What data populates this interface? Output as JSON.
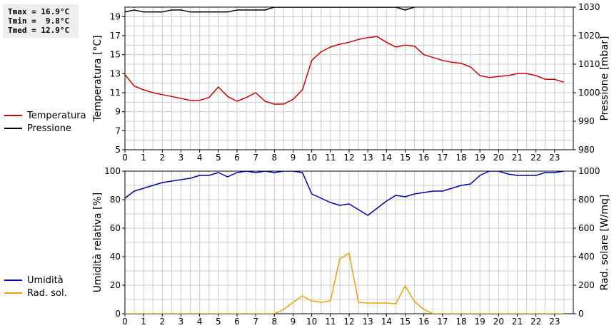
{
  "stats": {
    "tmax": "Tmax = 16.9°C",
    "tmin": "Tmin =  9.8°C",
    "tmed": "Tmed = 12.9°C"
  },
  "colors": {
    "temperature": "#cc0000",
    "pressure": "#000000",
    "humidity": "#0000aa",
    "solar": "#f0a000",
    "grid": "#cccccc"
  },
  "chart_data": [
    {
      "type": "line",
      "xlabel": "",
      "ylabel": "Temperatura [°C]",
      "y2label": "Pressione [mbar]",
      "xlim": [
        0,
        24
      ],
      "ylim": [
        5,
        20
      ],
      "y2lim": [
        980,
        1030
      ],
      "xticks": [
        0,
        1,
        2,
        3,
        4,
        5,
        6,
        7,
        8,
        9,
        10,
        11,
        12,
        13,
        14,
        15,
        16,
        17,
        18,
        19,
        20,
        21,
        22,
        23
      ],
      "yticks": [
        5,
        7,
        9,
        11,
        13,
        15,
        17,
        19
      ],
      "y2ticks": [
        980,
        990,
        1000,
        1010,
        1020,
        1030
      ],
      "grid": true,
      "legend_position": "left",
      "series": [
        {
          "name": "Temperatura",
          "axis": "left",
          "x": [
            0,
            0.5,
            1,
            1.5,
            2,
            2.5,
            3,
            3.5,
            4,
            4.5,
            5,
            5.5,
            6,
            6.5,
            7,
            7.5,
            8,
            8.5,
            9,
            9.5,
            10,
            10.5,
            11,
            11.5,
            12,
            12.5,
            13,
            13.5,
            14,
            14.5,
            15,
            15.5,
            16,
            16.5,
            17,
            17.5,
            18,
            18.5,
            19,
            19.5,
            20,
            20.5,
            21,
            21.5,
            22,
            22.5,
            23,
            23.5
          ],
          "values": [
            12.9,
            11.7,
            11.3,
            11.0,
            10.8,
            10.6,
            10.4,
            10.2,
            10.2,
            10.5,
            11.6,
            10.6,
            10.1,
            10.5,
            11.0,
            10.1,
            9.8,
            9.8,
            10.3,
            11.3,
            14.4,
            15.3,
            15.8,
            16.1,
            16.3,
            16.6,
            16.8,
            16.9,
            16.3,
            15.8,
            16.0,
            15.9,
            15.0,
            14.7,
            14.4,
            14.2,
            14.1,
            13.7,
            12.8,
            12.6,
            12.7,
            12.8,
            13.0,
            13.0,
            12.8,
            12.4,
            12.4,
            12.1
          ]
        },
        {
          "name": "Pressione",
          "axis": "right",
          "x": [
            0,
            0.5,
            1,
            1.5,
            2,
            2.5,
            3,
            3.5,
            4,
            4.5,
            5,
            5.5,
            6,
            6.5,
            7,
            7.5,
            8,
            14.5,
            15,
            15.5
          ],
          "values": [
            1028.3,
            1029.0,
            1028.3,
            1028.3,
            1028.3,
            1029.0,
            1029.0,
            1028.3,
            1028.3,
            1028.3,
            1028.3,
            1028.3,
            1029.0,
            1029.0,
            1029.0,
            1029.0,
            1030.0,
            1030.0,
            1029.0,
            1030.0
          ]
        }
      ]
    },
    {
      "type": "line",
      "xlabel": "",
      "ylabel": "Umidità relativa [%]",
      "y2label": "Rad. solare [W/mq]",
      "xlim": [
        0,
        24
      ],
      "ylim": [
        0,
        100
      ],
      "y2lim": [
        0,
        1000
      ],
      "xticks": [
        0,
        1,
        2,
        3,
        4,
        5,
        6,
        7,
        8,
        9,
        10,
        11,
        12,
        13,
        14,
        15,
        16,
        17,
        18,
        19,
        20,
        21,
        22,
        23
      ],
      "yticks": [
        0,
        20,
        40,
        60,
        80,
        100
      ],
      "y2ticks": [
        0,
        200,
        400,
        600,
        800,
        1000
      ],
      "grid": true,
      "legend_position": "left",
      "series": [
        {
          "name": "Umidità",
          "axis": "left",
          "x": [
            0,
            0.5,
            1,
            1.5,
            2,
            2.5,
            3,
            3.5,
            4,
            4.5,
            5,
            5.5,
            6,
            6.5,
            7,
            7.5,
            8,
            8.5,
            9,
            9.5,
            10,
            10.5,
            11,
            11.5,
            12,
            12.5,
            13,
            13.5,
            14,
            14.5,
            15,
            15.5,
            16,
            16.5,
            17,
            17.5,
            18,
            18.5,
            19,
            19.5,
            20,
            20.5,
            21,
            21.5,
            22,
            22.5,
            23,
            23.5
          ],
          "values": [
            81,
            86,
            88,
            90,
            92,
            93,
            94,
            95,
            97,
            97,
            99,
            96,
            99,
            100,
            99,
            100,
            99,
            100,
            100,
            99,
            84,
            81,
            78,
            76,
            77,
            73,
            69,
            74,
            79,
            83,
            82,
            84,
            85,
            86,
            86,
            88,
            90,
            91,
            97,
            100,
            100,
            98,
            97,
            97,
            97,
            99,
            99,
            100
          ]
        },
        {
          "name": "Rad. sol.",
          "axis": "right",
          "x": [
            0,
            0.5,
            1,
            1.5,
            2,
            2.5,
            3,
            3.5,
            4,
            4.5,
            5,
            5.5,
            6,
            6.5,
            7,
            7.5,
            8,
            8.5,
            9,
            9.5,
            10,
            10.5,
            11,
            11.5,
            12,
            12.5,
            13,
            13.5,
            14,
            14.5,
            15,
            15.5,
            16,
            16.5,
            17,
            17.5,
            18,
            18.5,
            19,
            19.5,
            20,
            20.5,
            21,
            21.5,
            22,
            22.5,
            23,
            23.5
          ],
          "values": [
            0,
            0,
            0,
            0,
            0,
            0,
            0,
            0,
            0,
            0,
            0,
            0,
            0,
            0,
            0,
            0,
            0,
            30,
            80,
            125,
            90,
            80,
            90,
            385,
            425,
            80,
            75,
            75,
            75,
            70,
            195,
            85,
            30,
            0,
            0,
            0,
            0,
            0,
            0,
            0,
            0,
            0,
            0,
            0,
            0,
            0,
            0,
            0
          ]
        }
      ]
    }
  ]
}
